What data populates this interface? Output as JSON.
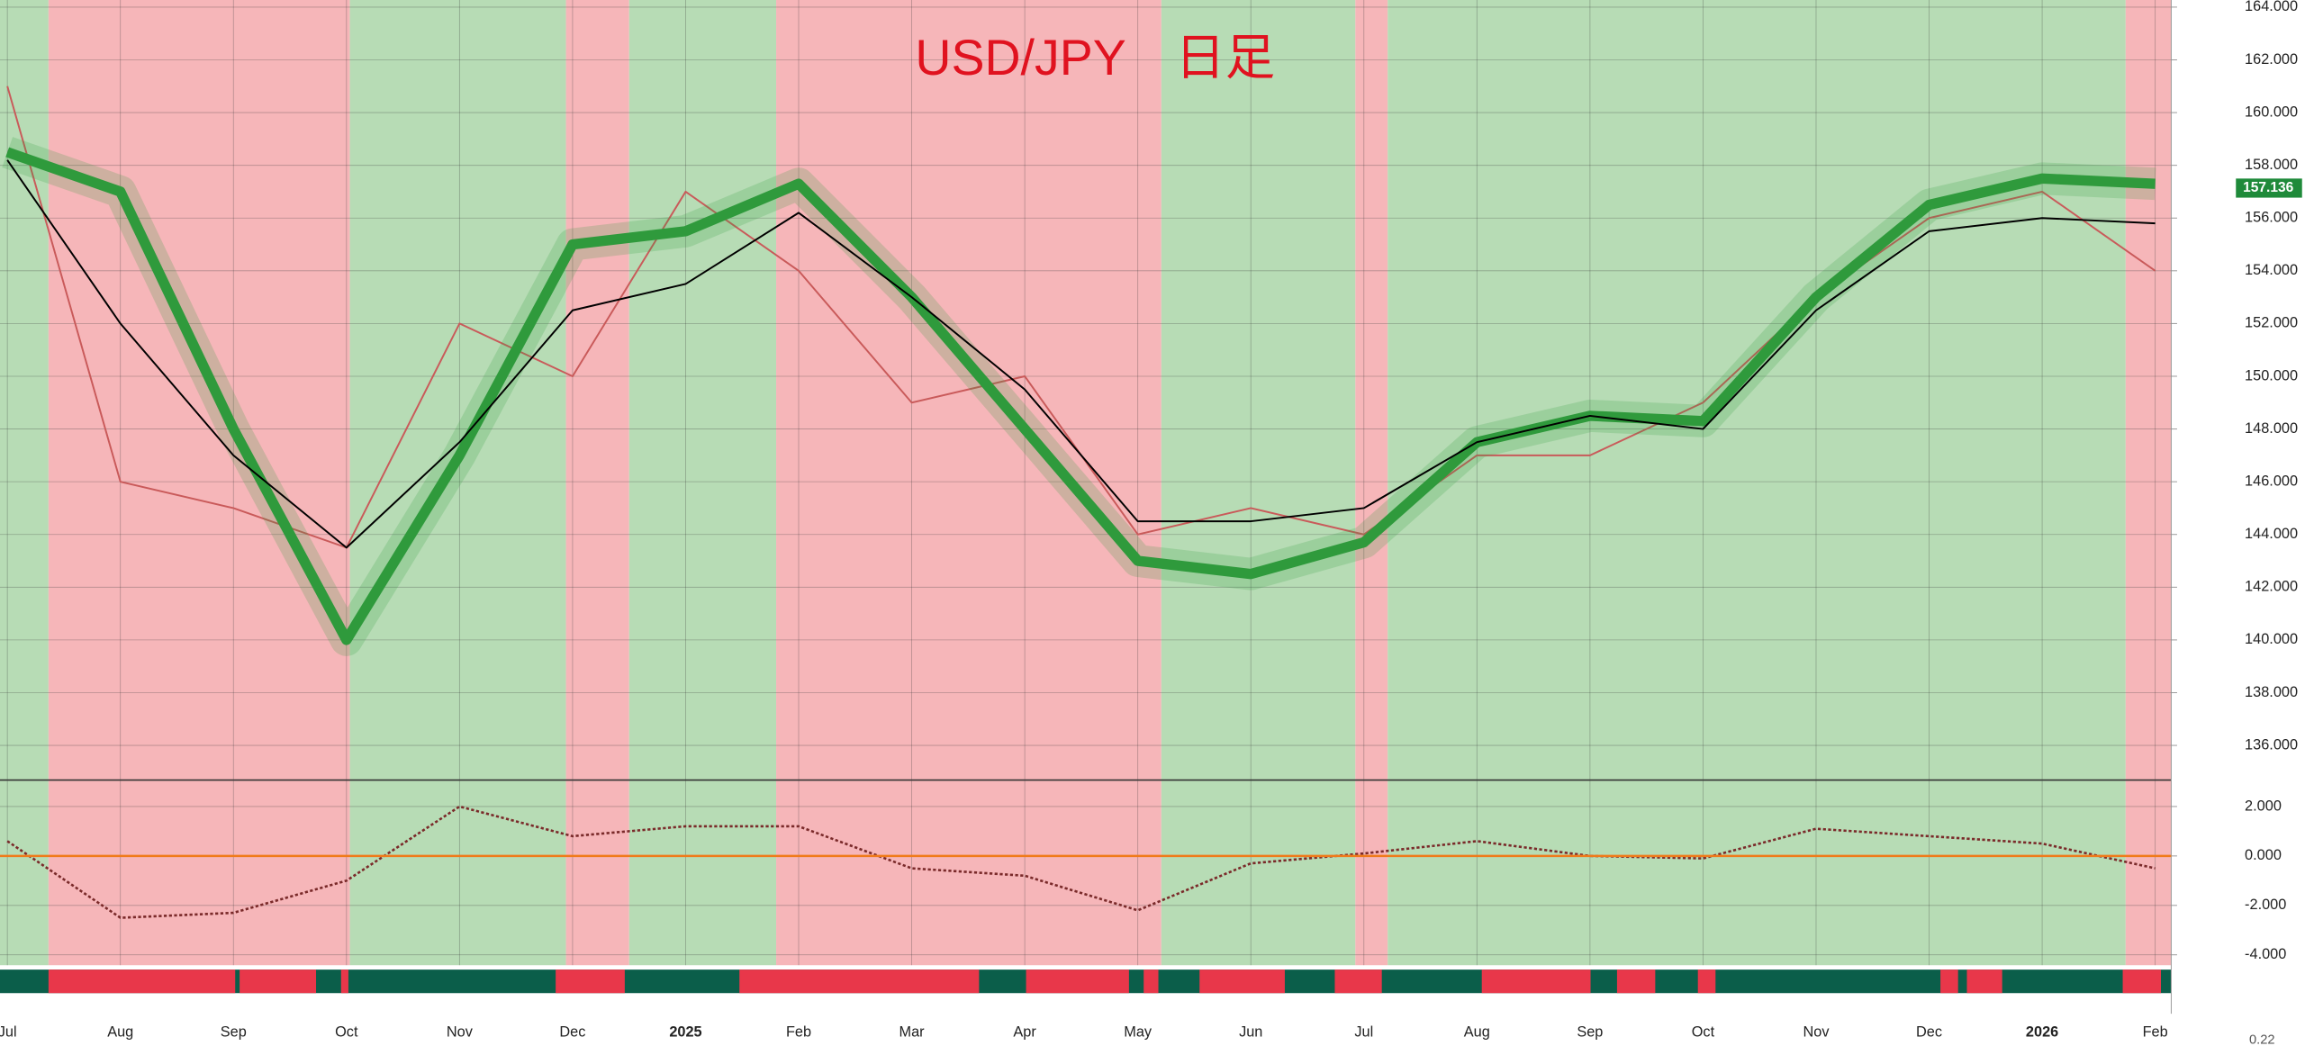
{
  "chart_data": [
    {
      "type": "line",
      "title": "USD/JPY　日足",
      "categories": [
        "Jul",
        "Aug",
        "Sep",
        "Oct",
        "Nov",
        "Dec",
        "2025",
        "Feb",
        "Mar",
        "Apr",
        "May",
        "Jun",
        "Jul",
        "Aug",
        "Sep",
        "Oct",
        "Nov",
        "Dec",
        "2026",
        "Feb"
      ],
      "series": [
        {
          "color": "#c95a5a",
          "values": [
            161,
            146,
            145,
            143.5,
            152,
            150,
            157,
            154,
            149,
            150,
            144,
            145,
            144,
            147,
            147,
            149,
            153,
            156,
            157,
            154
          ]
        },
        {
          "color": "#2f9a3c",
          "values": [
            158.5,
            157,
            148,
            140,
            147,
            155,
            155.5,
            157.3,
            153,
            148,
            143,
            142.5,
            143.7,
            147.5,
            148.5,
            148.3,
            153,
            156.5,
            157.5,
            157.3
          ]
        },
        {
          "color": "#000000",
          "values": [
            158.2,
            152,
            147,
            143.5,
            147.5,
            152.5,
            153.5,
            156.2,
            153,
            149.5,
            144.5,
            144.5,
            145,
            147.5,
            148.5,
            148,
            152.5,
            155.5,
            156,
            155.8
          ]
        }
      ],
      "last_price": 157.136,
      "ylim": [
        134.74,
        164.27
      ],
      "yticks": [
        {
          "value": 136,
          "label": "136.000"
        },
        {
          "value": 138,
          "label": "138.000"
        },
        {
          "value": 140,
          "label": "140.000"
        },
        {
          "value": 142,
          "label": "142.000"
        },
        {
          "value": 144,
          "label": "144.000"
        },
        {
          "value": 146,
          "label": "146.000"
        },
        {
          "value": 148,
          "label": "148.000"
        },
        {
          "value": 150,
          "label": "150.000"
        },
        {
          "value": 152,
          "label": "152.000"
        },
        {
          "value": 154,
          "label": "154.000"
        },
        {
          "value": 156,
          "label": "156.000"
        },
        {
          "value": 158,
          "label": "158.000"
        },
        {
          "value": 160,
          "label": "160.000"
        },
        {
          "value": 162,
          "label": "162.000"
        },
        {
          "value": 164,
          "label": "164.000"
        }
      ],
      "grid": true
    },
    {
      "type": "line",
      "series": [
        {
          "color": "#7a2a2a",
          "values": [
            0.6,
            -2.5,
            -2.3,
            -1.0,
            2.0,
            0.8,
            1.2,
            1.2,
            -0.5,
            -0.8,
            -2.2,
            -0.3,
            0.1,
            0.6,
            0.0,
            -0.1,
            1.1,
            0.8,
            0.5,
            -0.5
          ]
        }
      ],
      "ylim": [
        -4.42,
        2.95
      ],
      "yticks": [
        {
          "value": -4,
          "label": "-4.000"
        },
        {
          "value": -2,
          "label": "-2.000"
        },
        {
          "value": 0,
          "label": "0.000"
        },
        {
          "value": 2,
          "label": "2.000"
        }
      ],
      "grid": true
    }
  ],
  "cut_off_label": "0.22"
}
